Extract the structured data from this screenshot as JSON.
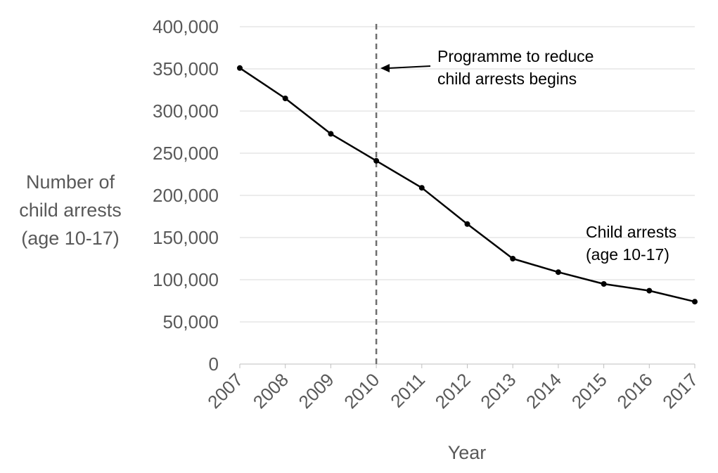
{
  "chart_data": {
    "type": "line",
    "categories": [
      "2007",
      "2008",
      "2009",
      "2010",
      "2011",
      "2012",
      "2013",
      "2014",
      "2015",
      "2016",
      "2017"
    ],
    "series": [
      {
        "name": "Child arrests (age 10-17)",
        "values": [
          351000,
          315000,
          273000,
          241000,
          209000,
          166000,
          125000,
          109000,
          95000,
          87000,
          74000
        ],
        "color": "#000000"
      }
    ],
    "xlabel": "Year",
    "ylabel_lines": [
      "Number of",
      "child arrests",
      "(age 10-17)"
    ],
    "ylim": [
      0,
      400000
    ],
    "yticks": [
      "0",
      "50,000",
      "100,000",
      "150,000",
      "200,000",
      "250,000",
      "300,000",
      "350,000",
      "400,000"
    ],
    "ytick_values": [
      0,
      50000,
      100000,
      150000,
      200000,
      250000,
      300000,
      350000,
      400000
    ],
    "grid": true,
    "annotations": {
      "vline_at": "2010",
      "programme_lines": [
        "Programme to reduce",
        "child arrests begins"
      ],
      "series_label_lines": [
        "Child arrests",
        "(age 10-17)"
      ]
    }
  }
}
